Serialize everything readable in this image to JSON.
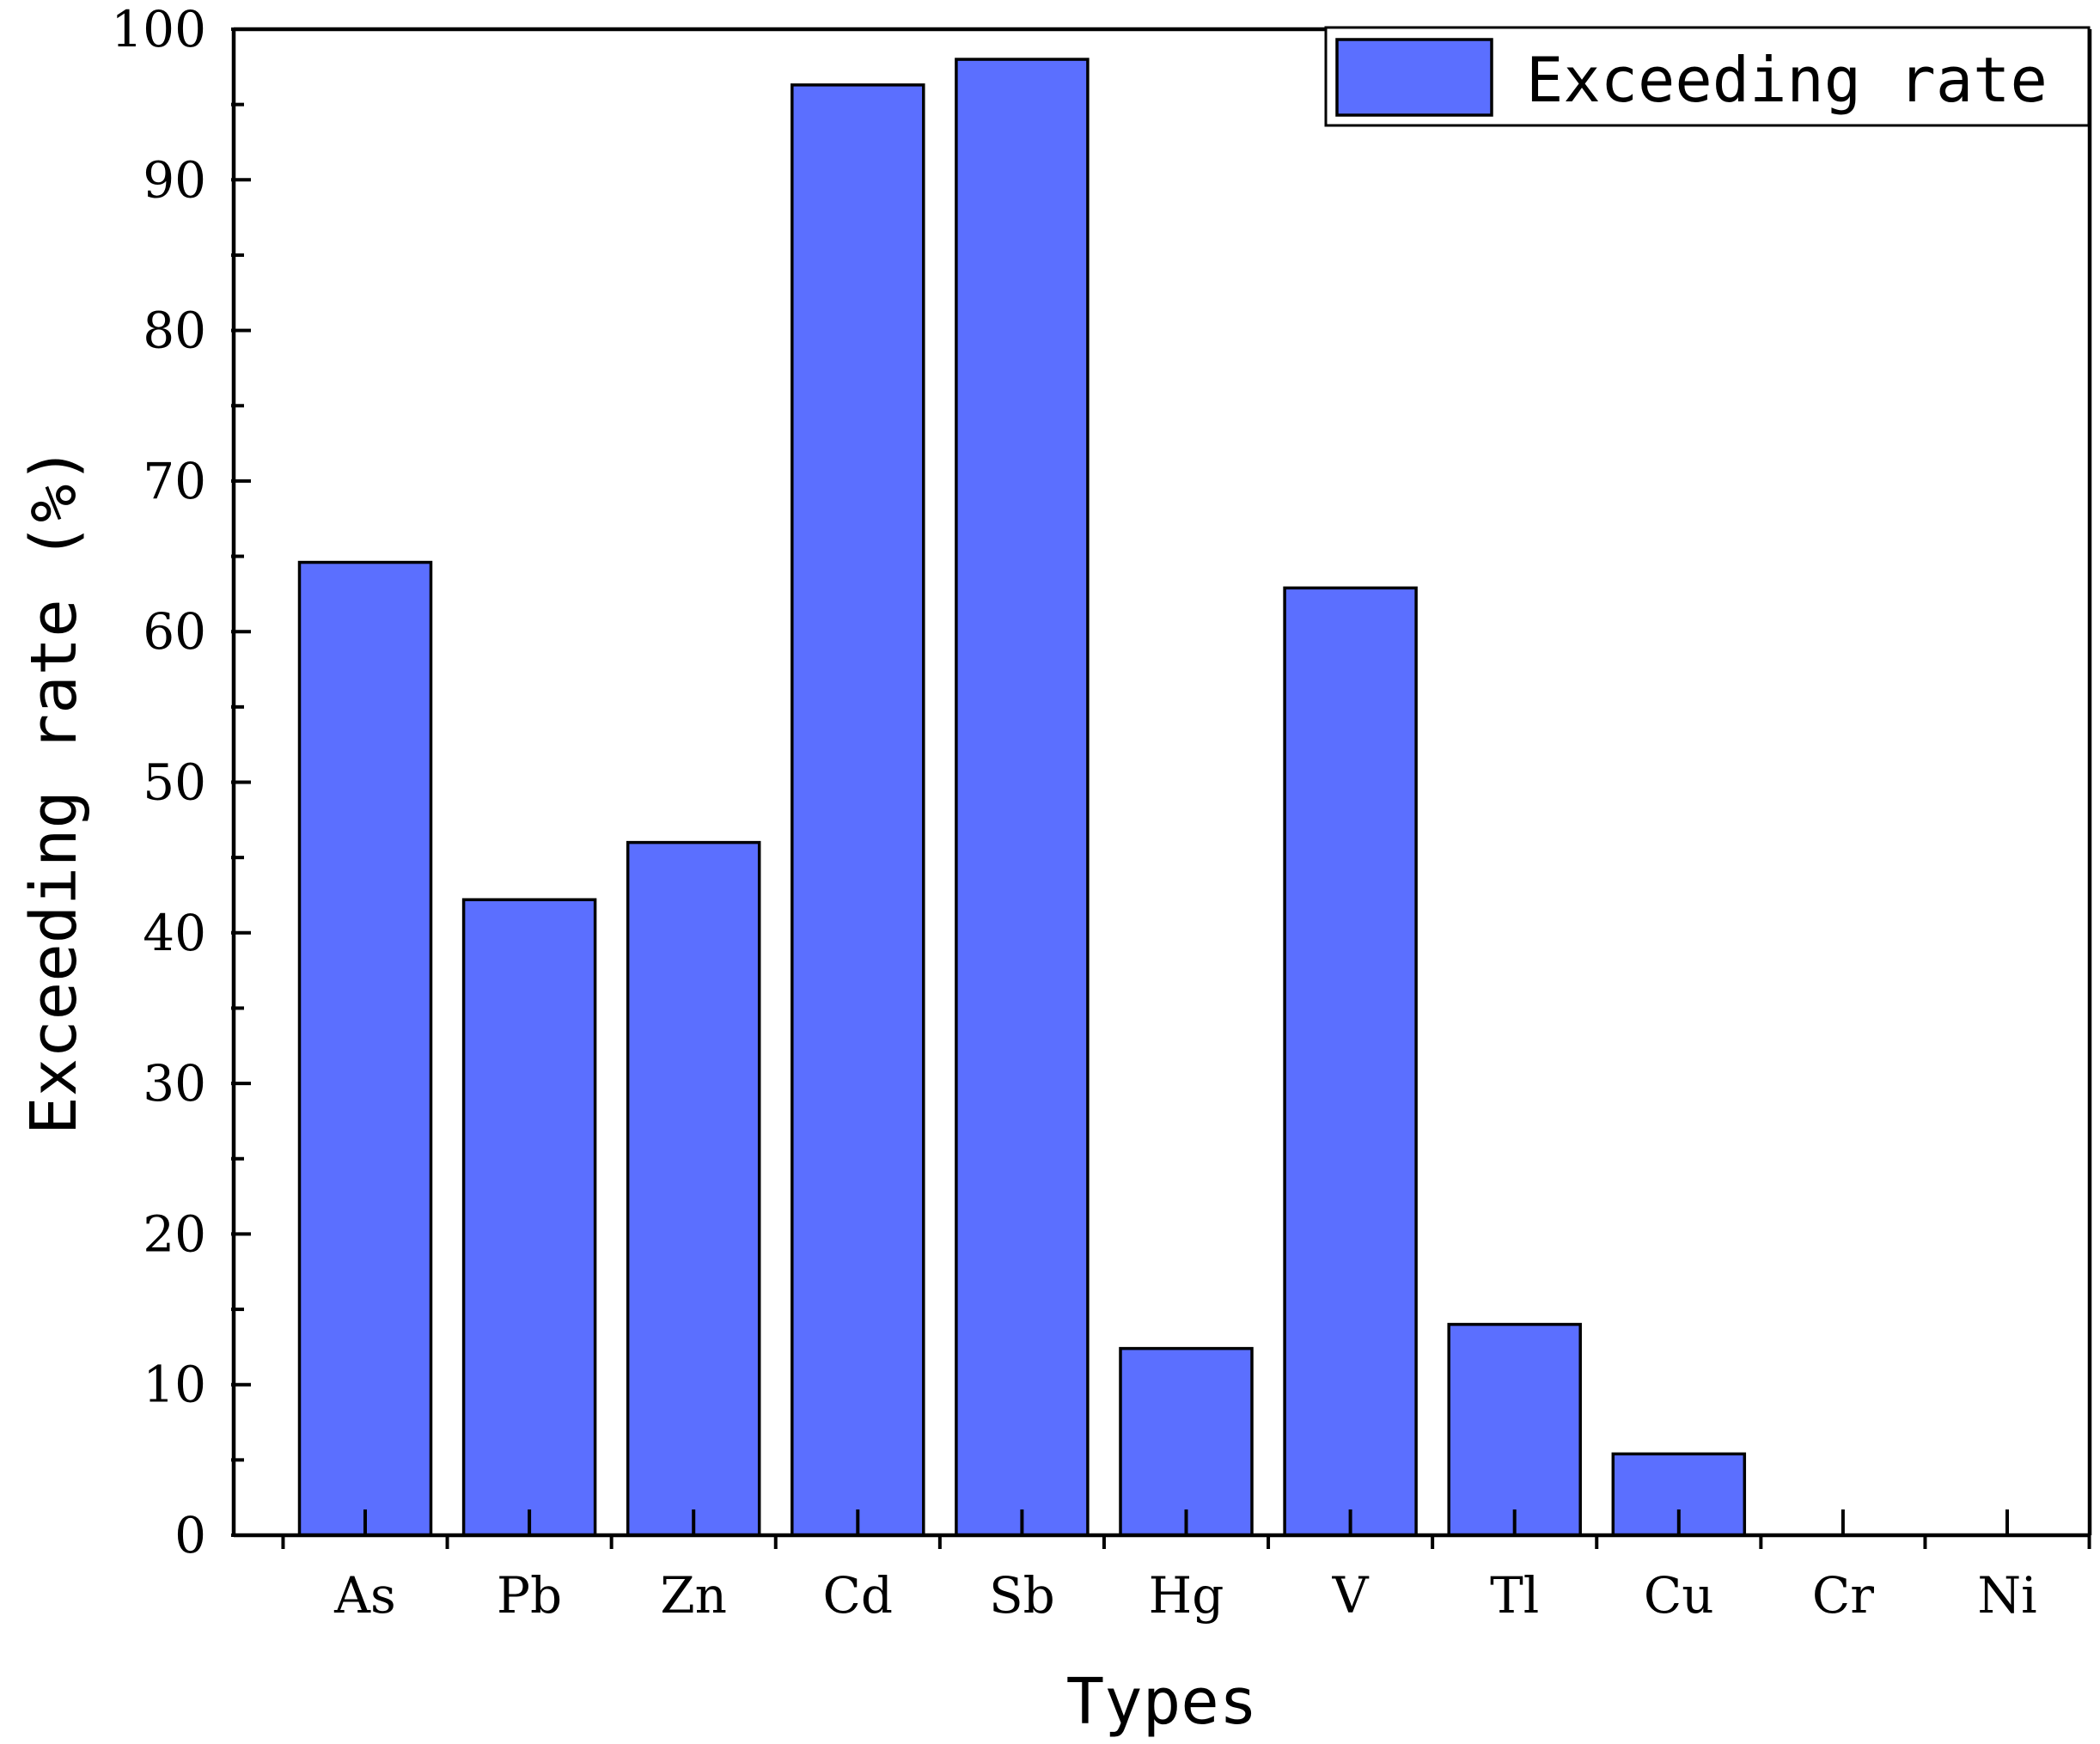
{
  "chart_data": {
    "type": "bar",
    "title": "",
    "xlabel": "Types",
    "ylabel": "Exceeding rate (%)",
    "categories": [
      "As",
      "Pb",
      "Zn",
      "Cd",
      "Sb",
      "Hg",
      "V",
      "Tl",
      "Cu",
      "Cr",
      "Ni"
    ],
    "series": [
      {
        "name": "Exceeding rate",
        "values": [
          64.6,
          42.2,
          46.0,
          96.3,
          98.0,
          12.4,
          62.9,
          14.0,
          5.4,
          0,
          0
        ]
      }
    ],
    "ylim": [
      0,
      100
    ],
    "yticks": [
      0,
      10,
      20,
      30,
      40,
      50,
      60,
      70,
      80,
      90,
      100
    ],
    "grid": false,
    "legend_position": "top-right",
    "colors": {
      "bar_fill": "#5b6fff",
      "bar_stroke": "#000000",
      "axis": "#000000"
    }
  }
}
